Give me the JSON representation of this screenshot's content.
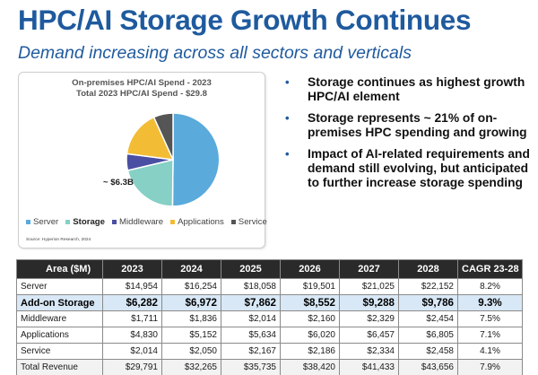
{
  "slide": {
    "title": "HPC/AI Storage Growth Continues",
    "subtitle": "Demand increasing across all sectors and verticals"
  },
  "pie": {
    "title_line1": "On-premises HPC/AI Spend - 2023",
    "title_line2": "Total 2023 HPC/AI Spend - $29.8",
    "callout": "~ $6.3B",
    "source": "Source: Hyperion Research, 2024",
    "legend": [
      {
        "label": "Server",
        "color": "#5aaadc",
        "bold": false
      },
      {
        "label": "Storage",
        "color": "#86d0c6",
        "bold": true
      },
      {
        "label": "Middleware",
        "color": "#4a4fa3",
        "bold": false
      },
      {
        "label": "Applications",
        "color": "#f2bc35",
        "bold": false
      },
      {
        "label": "Service",
        "color": "#555555",
        "bold": false
      }
    ]
  },
  "chart_data": {
    "type": "pie",
    "title": "On-premises HPC/AI Spend - 2023",
    "subtitle": "Total 2023 HPC/AI Spend - $29.8",
    "slices": [
      {
        "name": "Server",
        "value": 14.954,
        "color": "#5aaadc"
      },
      {
        "name": "Storage",
        "value": 6.282,
        "color": "#86d0c6"
      },
      {
        "name": "Middleware",
        "value": 1.711,
        "color": "#4a4fa3"
      },
      {
        "name": "Applications",
        "value": 4.83,
        "color": "#f2bc35"
      },
      {
        "name": "Service",
        "value": 2.014,
        "color": "#555555"
      }
    ],
    "annotation": "~ $6.3B",
    "legend_position": "bottom"
  },
  "bullets": [
    "Storage continues as highest growth HPC/AI element",
    "Storage represents ~ 21% of on-premises HPC spending and growing",
    "Impact of AI-related requirements and demand still evolving, but anticipated to further increase storage spending"
  ],
  "bullet_glyph": "•",
  "table": {
    "headers": [
      "Area ($M)",
      "2023",
      "2024",
      "2025",
      "2026",
      "2027",
      "2028",
      "CAGR 23-28"
    ],
    "rows": [
      {
        "cells": [
          "Server",
          "$14,954",
          "$16,254",
          "$18,058",
          "$19,501",
          "$21,025",
          "$22,152",
          "8.2%"
        ],
        "highlight": false
      },
      {
        "cells": [
          "Add-on Storage",
          "$6,282",
          "$6,972",
          "$7,862",
          "$8,552",
          "$9,288",
          "$9,786",
          "9.3%"
        ],
        "highlight": true
      },
      {
        "cells": [
          "Middleware",
          "$1,711",
          "$1,836",
          "$2,014",
          "$2,160",
          "$2,329",
          "$2,454",
          "7.5%"
        ],
        "highlight": false
      },
      {
        "cells": [
          "Applications",
          "$4,830",
          "$5,152",
          "$5,634",
          "$6,020",
          "$6,457",
          "$6,805",
          "7.1%"
        ],
        "highlight": false
      },
      {
        "cells": [
          "Service",
          "$2,014",
          "$2,050",
          "$2,167",
          "$2,186",
          "$2,334",
          "$2,458",
          "4.1%"
        ],
        "highlight": false
      },
      {
        "cells": [
          "Total Revenue",
          "$29,791",
          "$32,265",
          "$35,735",
          "$38,420",
          "$41,433",
          "$43,656",
          "7.9%"
        ],
        "highlight": false,
        "total": true
      }
    ]
  }
}
